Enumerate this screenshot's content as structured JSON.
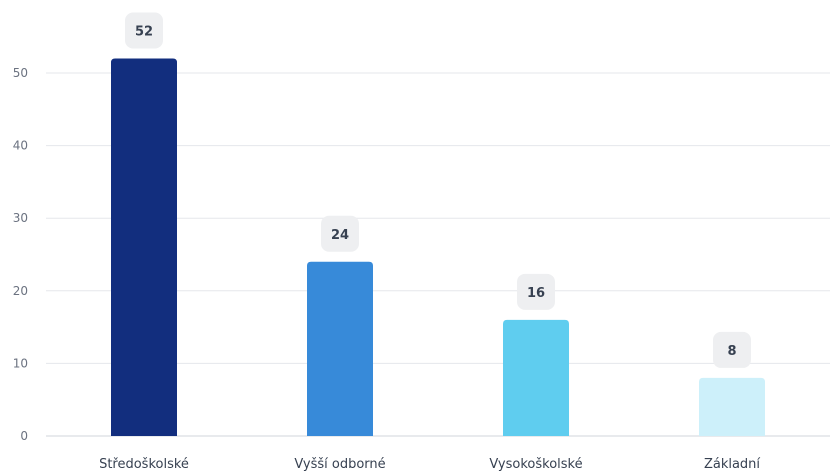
{
  "chart_data": {
    "type": "bar",
    "categories": [
      "Středoškolské",
      "Vyšší odborné",
      "Vysokoškolské",
      "Základní"
    ],
    "values": [
      52,
      24,
      16,
      8
    ],
    "colors": [
      "#122e7e",
      "#378ad9",
      "#5fcdef",
      "#cdf0fa"
    ],
    "ylim": [
      0,
      55
    ],
    "yticks": [
      0,
      10,
      20,
      30,
      40,
      50
    ],
    "grid": true,
    "legend": "none",
    "data_labels": true
  }
}
